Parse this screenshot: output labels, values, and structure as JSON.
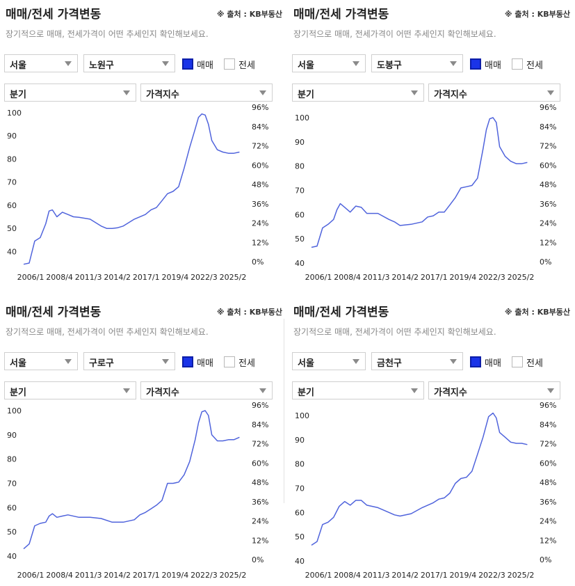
{
  "common": {
    "title": "매매/전세 가격변동",
    "source": "※ 출처 : KB부동산",
    "subtitle": "장기적으로 매매, 전세가격이 어떤 추세인지 확인해보세요.",
    "city": "서울",
    "trade_label": "매매",
    "jeonse_label": "전세",
    "period": "분기",
    "metric": "가격지수"
  },
  "panels": [
    {
      "district": "노원구",
      "trade_checked": true,
      "jeonse_checked": false
    },
    {
      "district": "도봉구",
      "trade_checked": true,
      "jeonse_checked": false
    },
    {
      "district": "구로구",
      "trade_checked": true,
      "jeonse_checked": false
    },
    {
      "district": "금천구",
      "trade_checked": true,
      "jeonse_checked": false
    }
  ],
  "colors": {
    "line": "#4f63dc",
    "checked": "#1a34e8"
  },
  "chart_data": [
    {
      "type": "line",
      "title": "노원구 매매 가격지수",
      "x_tick_labels": [
        "2006/1",
        "2008/4",
        "2011/3",
        "2014/2",
        "2017/1",
        "2019/4",
        "2022/3",
        "2025/2"
      ],
      "y_left_ticks": [
        40,
        50,
        60,
        70,
        80,
        90,
        100
      ],
      "y_right_ticks": [
        "0%",
        "12%",
        "24%",
        "36%",
        "48%",
        "60%",
        "72%",
        "84%",
        "96%"
      ],
      "ylim": [
        35,
        100
      ],
      "xlim": [
        2006.0,
        2025.6
      ],
      "series": [
        {
          "name": "매매",
          "x": [
            2006.0,
            2006.5,
            2007.0,
            2007.5,
            2008.0,
            2008.3,
            2008.6,
            2009.0,
            2009.5,
            2010.0,
            2010.5,
            2011.0,
            2012.0,
            2013.0,
            2013.5,
            2014.0,
            2014.5,
            2015.0,
            2016.0,
            2017.0,
            2017.5,
            2018.0,
            2018.5,
            2019.0,
            2019.5,
            2020.0,
            2020.5,
            2021.0,
            2021.5,
            2021.8,
            2022.1,
            2022.4,
            2022.7,
            2023.0,
            2023.5,
            2024.0,
            2024.5,
            2025.0,
            2025.5
          ],
          "values": [
            34.5,
            35,
            44.5,
            46,
            52,
            57.5,
            58,
            55,
            57,
            56,
            55,
            54.8,
            54,
            51,
            50,
            50,
            50.3,
            51,
            54,
            56,
            58,
            59,
            62,
            65,
            66,
            68,
            76,
            85,
            93,
            98,
            99.5,
            99,
            95,
            88,
            84,
            83,
            82.5,
            82.5,
            83
          ]
        }
      ]
    },
    {
      "type": "line",
      "title": "도봉구 매매 가격지수",
      "x_tick_labels": [
        "2006/1",
        "2008/4",
        "2011/3",
        "2014/2",
        "2017/1",
        "2019/4",
        "2022/3",
        "2025/2"
      ],
      "y_left_ticks": [
        40,
        50,
        60,
        70,
        80,
        90,
        100
      ],
      "y_right_ticks": [
        "0%",
        "12%",
        "24%",
        "36%",
        "48%",
        "60%",
        "72%",
        "84%",
        "96%"
      ],
      "ylim": [
        40,
        102
      ],
      "xlim": [
        2006.0,
        2025.6
      ],
      "series": [
        {
          "name": "매매",
          "x": [
            2006.0,
            2006.5,
            2007.0,
            2007.5,
            2008.0,
            2008.3,
            2008.6,
            2009.0,
            2009.5,
            2010.0,
            2010.5,
            2011.0,
            2012.0,
            2013.0,
            2013.5,
            2014.0,
            2015.0,
            2016.0,
            2016.5,
            2017.0,
            2017.5,
            2018.0,
            2018.5,
            2019.0,
            2019.5,
            2020.0,
            2020.5,
            2021.0,
            2021.5,
            2021.8,
            2022.1,
            2022.4,
            2022.7,
            2023.0,
            2023.5,
            2024.0,
            2024.5,
            2025.0,
            2025.5
          ],
          "values": [
            46.5,
            47,
            54.5,
            56,
            58,
            62,
            64.5,
            63,
            61,
            63.5,
            63,
            60.5,
            60.5,
            58,
            57,
            55.5,
            56,
            57,
            59,
            59.5,
            61,
            61,
            64,
            67,
            71,
            71.5,
            72,
            75,
            87,
            95,
            99.5,
            100,
            98,
            88,
            84,
            82,
            81,
            81,
            81.5
          ]
        }
      ]
    },
    {
      "type": "line",
      "title": "구로구 매매 가격지수",
      "x_tick_labels": [
        "2006/1",
        "2008/4",
        "2011/3",
        "2014/2",
        "2017/1",
        "2019/4",
        "2022/3",
        "2025/2"
      ],
      "y_left_ticks": [
        40,
        50,
        60,
        70,
        80,
        90,
        100
      ],
      "y_right_ticks": [
        "0%",
        "12%",
        "24%",
        "36%",
        "48%",
        "60%",
        "72%",
        "84%",
        "96%"
      ],
      "ylim": [
        38,
        100
      ],
      "xlim": [
        2006.0,
        2025.6
      ],
      "series": [
        {
          "name": "매매",
          "x": [
            2006.0,
            2006.5,
            2007.0,
            2007.5,
            2008.0,
            2008.3,
            2008.6,
            2009.0,
            2009.5,
            2010.0,
            2011.0,
            2012.0,
            2013.0,
            2014.0,
            2015.0,
            2016.0,
            2016.5,
            2017.0,
            2017.5,
            2018.0,
            2018.5,
            2019.0,
            2019.5,
            2020.0,
            2020.5,
            2021.0,
            2021.5,
            2021.8,
            2022.1,
            2022.4,
            2022.7,
            2023.0,
            2023.5,
            2024.0,
            2024.5,
            2025.0,
            2025.5
          ],
          "values": [
            43,
            45,
            52.5,
            53.5,
            54,
            56.5,
            57.5,
            56,
            56.5,
            57,
            56,
            56,
            55.5,
            54,
            54,
            55,
            57,
            58,
            59.5,
            61,
            63,
            70,
            70,
            70.5,
            73.5,
            79,
            88,
            95,
            99.5,
            100,
            98,
            90,
            87.5,
            87.5,
            88,
            88,
            89
          ]
        }
      ]
    },
    {
      "type": "line",
      "title": "금천구 매매 가격지수",
      "x_tick_labels": [
        "2006/1",
        "2008/4",
        "2011/3",
        "2014/2",
        "2017/1",
        "2019/4",
        "2022/3",
        "2025/2"
      ],
      "y_left_ticks": [
        40,
        50,
        60,
        70,
        80,
        90,
        100
      ],
      "y_right_ticks": [
        "0%",
        "12%",
        "24%",
        "36%",
        "48%",
        "60%",
        "72%",
        "84%",
        "96%"
      ],
      "ylim": [
        40,
        102
      ],
      "xlim": [
        2006.0,
        2025.6
      ],
      "series": [
        {
          "name": "매매",
          "x": [
            2006.0,
            2006.5,
            2007.0,
            2007.5,
            2008.0,
            2008.5,
            2009.0,
            2009.5,
            2010.0,
            2010.5,
            2011.0,
            2012.0,
            2013.0,
            2013.5,
            2014.0,
            2015.0,
            2016.0,
            2017.0,
            2017.5,
            2018.0,
            2018.5,
            2019.0,
            2019.5,
            2020.0,
            2020.5,
            2021.0,
            2021.5,
            2022.0,
            2022.4,
            2022.7,
            2023.0,
            2023.5,
            2024.0,
            2024.5,
            2025.0,
            2025.5
          ],
          "values": [
            46.5,
            48,
            55,
            56,
            58,
            62.5,
            64.5,
            63,
            65,
            65,
            63,
            62,
            60,
            59,
            58.5,
            59.5,
            62,
            64,
            65.5,
            66,
            68,
            72,
            74,
            74.5,
            77,
            84,
            91,
            99.5,
            101,
            99,
            93,
            91,
            89,
            88.5,
            88.5,
            88
          ]
        }
      ]
    }
  ]
}
